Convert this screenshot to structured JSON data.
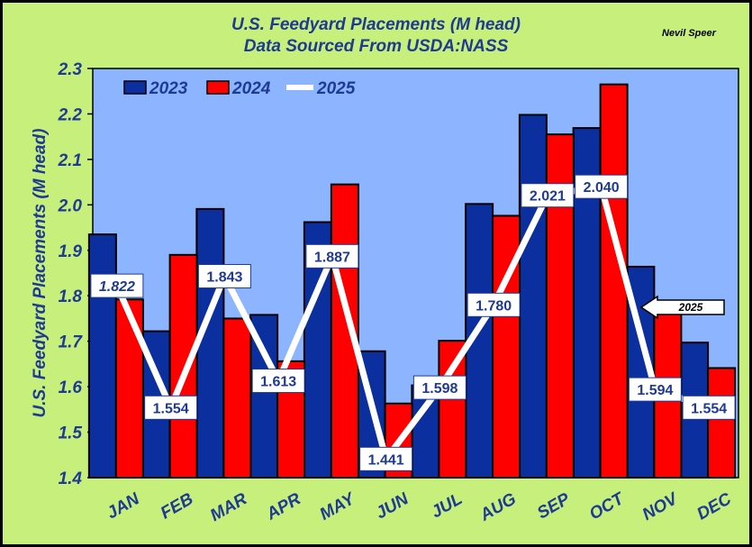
{
  "chart_data": {
    "type": "bar",
    "title": "U.S. Feedyard Placements (M head)",
    "subtitle": "Data Sourced From USDA:NASS",
    "author": "Nevil Speer",
    "ylabel": "U.S. Feedyard Placements (M head)",
    "xlabel": "",
    "ylim": [
      1.4,
      2.3
    ],
    "yticks": [
      "1.4",
      "1.5",
      "1.6",
      "1.7",
      "1.8",
      "1.9",
      "2.0",
      "2.1",
      "2.2",
      "2.3"
    ],
    "categories": [
      "JAN",
      "FEB",
      "MAR",
      "APR",
      "MAY",
      "JUN",
      "JUL",
      "AUG",
      "SEP",
      "OCT",
      "NOV",
      "DEC"
    ],
    "series": [
      {
        "name": "2023",
        "type": "bar",
        "color": "#0b2f9e",
        "values": [
          1.935,
          1.722,
          1.991,
          1.758,
          1.962,
          1.678,
          1.603,
          2.002,
          2.198,
          2.169,
          1.864,
          1.697
        ]
      },
      {
        "name": "2024",
        "type": "bar",
        "color": "#ff0000",
        "values": [
          1.792,
          1.89,
          1.75,
          1.656,
          2.045,
          1.563,
          1.701,
          1.976,
          2.155,
          2.265,
          1.763,
          1.641
        ]
      },
      {
        "name": "2025",
        "type": "line",
        "color": "#ffffff",
        "values": [
          1.822,
          1.554,
          1.843,
          1.613,
          1.887,
          1.441,
          1.598,
          1.78,
          2.021,
          2.04,
          1.594,
          1.554
        ],
        "labels": [
          "1.822",
          "1.554",
          "1.843",
          "1.613",
          "1.887",
          "1.441",
          "1.598",
          "1.780",
          "2.021",
          "2.040",
          "1.594",
          "1.554"
        ]
      }
    ],
    "legend_position": "top-left",
    "annotation": "2025",
    "grid": false,
    "plot_background": "#8db4ff"
  }
}
